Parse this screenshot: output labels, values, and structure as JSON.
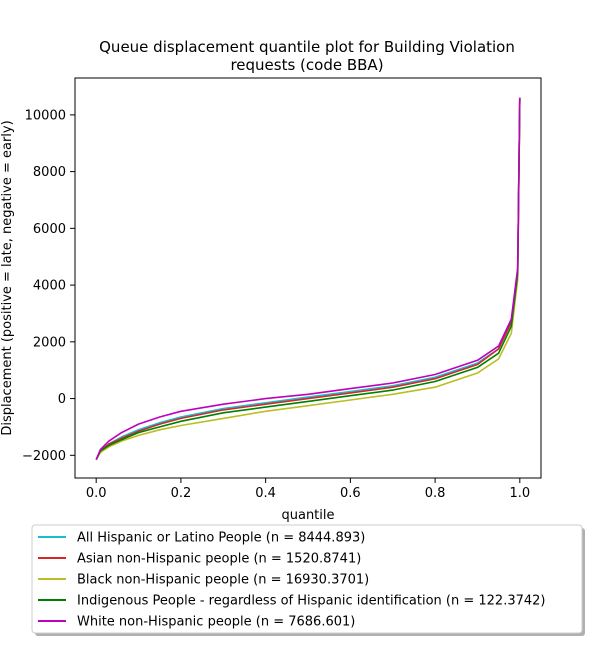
{
  "chart_data": {
    "type": "line",
    "title_line1": "Queue displacement quantile plot for Building Violation",
    "title_line2": "requests (code BBA)",
    "xlabel": "quantile",
    "ylabel": "Displacement (positive = late, negative = early)",
    "xlim": [
      -0.05,
      1.05
    ],
    "ylim": [
      -2800,
      11300
    ],
    "x_ticks": [
      0.0,
      0.2,
      0.4,
      0.6,
      0.8,
      1.0
    ],
    "x_tick_labels": [
      "0.0",
      "0.2",
      "0.4",
      "0.6",
      "0.8",
      "1.0"
    ],
    "y_ticks": [
      -2000,
      0,
      2000,
      4000,
      6000,
      8000,
      10000
    ],
    "y_tick_labels": [
      "−2000",
      "0",
      "2000",
      "4000",
      "6000",
      "8000",
      "10000"
    ],
    "legend_position": "below",
    "series": [
      {
        "name": "All Hispanic or Latino People (n = 8444.893)",
        "color": "#17becf",
        "x": [
          0.0,
          0.01,
          0.03,
          0.06,
          0.1,
          0.15,
          0.2,
          0.3,
          0.4,
          0.5,
          0.6,
          0.7,
          0.8,
          0.9,
          0.95,
          0.98,
          0.995,
          1.0
        ],
        "y": [
          -2150,
          -1850,
          -1600,
          -1350,
          -1100,
          -850,
          -650,
          -350,
          -150,
          50,
          250,
          450,
          750,
          1250,
          1750,
          2700,
          4500,
          10600
        ]
      },
      {
        "name": "Asian non-Hispanic people (n = 1520.8741)",
        "color": "#d62728",
        "x": [
          0.0,
          0.01,
          0.03,
          0.06,
          0.1,
          0.15,
          0.2,
          0.3,
          0.4,
          0.5,
          0.6,
          0.7,
          0.8,
          0.9,
          0.95,
          0.98,
          0.995,
          1.0
        ],
        "y": [
          -2150,
          -1850,
          -1600,
          -1400,
          -1150,
          -900,
          -700,
          -400,
          -200,
          0,
          200,
          400,
          700,
          1200,
          1750,
          2700,
          4500,
          10600
        ]
      },
      {
        "name": "Black non-Hispanic people (n = 16930.3701)",
        "color": "#bcbd22",
        "x": [
          0.0,
          0.01,
          0.03,
          0.06,
          0.1,
          0.15,
          0.2,
          0.3,
          0.4,
          0.5,
          0.6,
          0.7,
          0.8,
          0.9,
          0.95,
          0.98,
          0.995,
          1.0
        ],
        "y": [
          -2150,
          -1900,
          -1700,
          -1500,
          -1300,
          -1100,
          -950,
          -700,
          -450,
          -250,
          -50,
          150,
          400,
          900,
          1400,
          2300,
          4200,
          10600
        ]
      },
      {
        "name": "Indigenous People - regardless of Hispanic identification (n = 122.3742)",
        "color": "#008000",
        "x": [
          0.0,
          0.01,
          0.03,
          0.06,
          0.1,
          0.15,
          0.2,
          0.3,
          0.4,
          0.5,
          0.6,
          0.7,
          0.8,
          0.9,
          0.95,
          0.98,
          0.995,
          1.0
        ],
        "y": [
          -2150,
          -1850,
          -1650,
          -1450,
          -1200,
          -1000,
          -800,
          -500,
          -300,
          -100,
          100,
          300,
          600,
          1100,
          1600,
          2550,
          4400,
          10600
        ]
      },
      {
        "name": "White non-Hispanic people (n = 7686.601)",
        "color": "#bf00bf",
        "x": [
          0.0,
          0.01,
          0.03,
          0.06,
          0.1,
          0.15,
          0.2,
          0.3,
          0.4,
          0.5,
          0.6,
          0.7,
          0.8,
          0.9,
          0.95,
          0.98,
          0.995,
          1.0
        ],
        "y": [
          -2150,
          -1800,
          -1500,
          -1200,
          -900,
          -650,
          -450,
          -200,
          0,
          150,
          350,
          550,
          850,
          1350,
          1850,
          2800,
          4600,
          10600
        ]
      }
    ]
  }
}
